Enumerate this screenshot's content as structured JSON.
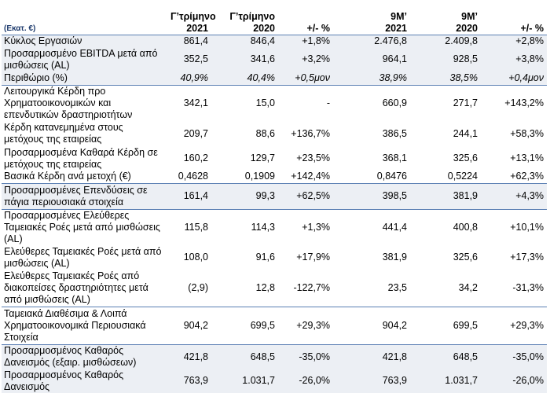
{
  "table": {
    "header": [
      "(Εκατ. €)",
      "Γ’τρίμηνο\n2021",
      "Γ’τρίμηνο\n2020",
      "+/- %",
      "9Μ’\n2021",
      "9Μ’\n2020",
      "+/- %"
    ],
    "rows": [
      [
        "Κύκλος Εργασιών",
        "861,4",
        "846,4",
        "+1,8%",
        "2.476,8",
        "2.409,8",
        "+2,8%"
      ],
      [
        "Προσαρμοσμένο EBITDA μετά από μισθώσεις (AL)",
        "352,5",
        "341,6",
        "+3,2%",
        "964,1",
        "928,5",
        "+3,8%"
      ],
      [
        "Περιθώριο (%)",
        "40,9%",
        "40,4%",
        "+0,5μον",
        "38,9%",
        "38,5%",
        "+0,4μον"
      ],
      [
        "Λειτουργικά Κέρδη προ Χρηματοοικονομικών και επενδυτικών δραστηριοτήτων",
        "342,1",
        "15,0",
        "-",
        "660,9",
        "271,7",
        "+143,2%"
      ],
      [
        "Κέρδη κατανεμημένα στους μετόχους της εταιρείας",
        "209,7",
        "88,6",
        "+136,7%",
        "386,5",
        "244,1",
        "+58,3%"
      ],
      [
        "Προσαρμοσμένα Καθαρά Κέρδη σε μετόχους της εταιρείας",
        "160,2",
        "129,7",
        "+23,5%",
        "368,1",
        "325,6",
        "+13,1%"
      ],
      [
        "Βασικά Κέρδη ανά μετοχή (€)",
        "0,4628",
        "0,1909",
        "+142,4%",
        "0,8476",
        "0,5224",
        "+62,3%"
      ],
      [
        "Προσαρμοσμένες Επενδύσεις σε πάγια περιουσιακά στοιχεία",
        "161,4",
        "99,3",
        "+62,5%",
        "398,5",
        "381,9",
        "+4,3%"
      ],
      [
        "Προσαρμοσμένες Ελεύθερες Ταμειακές Ροές μετά από μισθώσεις (AL)",
        "115,8",
        "114,3",
        "+1,3%",
        "441,4",
        "400,8",
        "+10,1%"
      ],
      [
        "Ελεύθερες Ταμειακές Ροές μετά από μισθώσεις (AL)",
        "108,0",
        "91,6",
        "+17,9%",
        "381,9",
        "325,6",
        "+17,3%"
      ],
      [
        "Ελεύθερες Ταμειακές Ροές από διακοπείσες δραστηριότητες μετά από μισθώσεις (AL)",
        "(2,9)",
        "12,8",
        "-122,7%",
        "23,5",
        "34,2",
        "-31,3%"
      ],
      [
        "Ταμειακά Διαθέσιμα & Λοιπά Χρηματοοικονομικά Περιουσιακά Στοιχεία",
        "904,2",
        "699,5",
        "+29,3%",
        "904,2",
        "699,5",
        "+29,3%"
      ],
      [
        "Προσαρμοσμένος Καθαρός Δανεισμός (εξαιρ. μισθώσεων)",
        "421,8",
        "648,5",
        "-35,0%",
        "421,8",
        "648,5",
        "-35,0%"
      ],
      [
        "Προσαρμοσμένος Καθαρός Δανεισμός",
        "763,9",
        "1.031,7",
        "-26,0%",
        "763,9",
        "1.031,7",
        "-26,0%"
      ]
    ]
  }
}
